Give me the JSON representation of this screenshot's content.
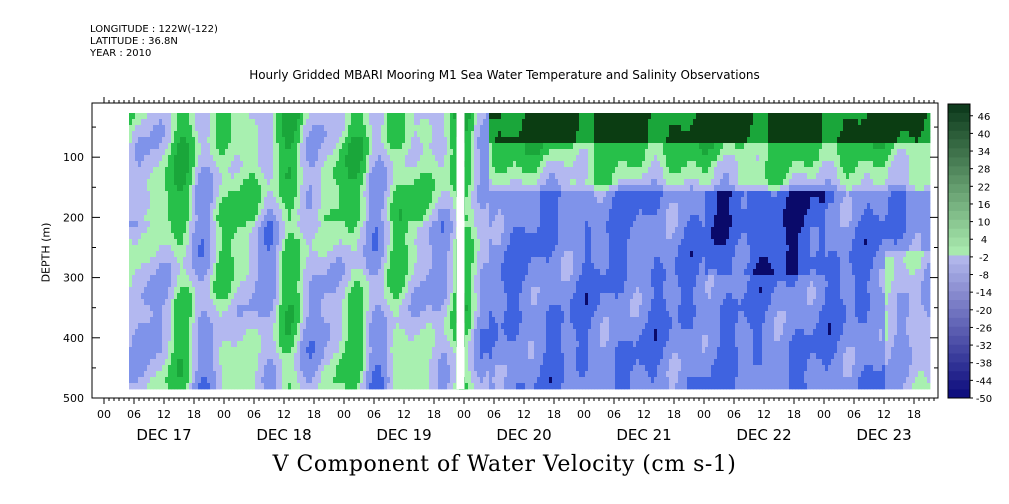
{
  "header": {
    "longitude": "LONGITUDE : 122W(-122)",
    "latitude": "LATITUDE : 36.8N",
    "year": "YEAR : 2010"
  },
  "chart_data": {
    "type": "heatmap",
    "title": "Hourly Gridded MBARI Mooring M1 Sea Water Temperature and Salinity Observations",
    "xlabel": "V Component of Water Velocity (cm s-1)",
    "ylabel": "DEPTH (m)",
    "ylim": [
      500,
      10
    ],
    "y_ticks": [
      100,
      200,
      300,
      400,
      500
    ],
    "x_hour_ticks": [
      "00",
      "06",
      "12",
      "18",
      "00",
      "06",
      "12",
      "18",
      "00",
      "06",
      "12",
      "18",
      "00",
      "06",
      "12",
      "18",
      "00",
      "06",
      "12",
      "18",
      "00",
      "06",
      "12",
      "18",
      "00",
      "06",
      "12",
      "18"
    ],
    "x_day_labels": [
      "DEC 17",
      "DEC 18",
      "DEC 19",
      "DEC 20",
      "DEC 21",
      "DEC 22",
      "DEC 23"
    ],
    "colorbar_labels": [
      "46",
      "40",
      "34",
      "28",
      "22",
      "16",
      "10",
      "4",
      "-2",
      "-8",
      "-14",
      "-20",
      "-26",
      "-32",
      "-38",
      "-44",
      "-50"
    ],
    "colorbar_range": [
      -50,
      50
    ],
    "colorbar_step": 3,
    "colors": {
      "positive_dark": "#0b3d12",
      "positive_mid": "#27c04a",
      "positive_light": "#a8f0b0",
      "negative_light": "#b3b8f0",
      "negative_mid": "#3f63e0",
      "negative_dark": "#0a0a6a"
    },
    "features": [
      {
        "note": "Strong positive (northward) flow near surface after DEC 20",
        "approx_value": 40
      },
      {
        "note": "Negative (southward) flow at depth DEC 20 - DEC 23",
        "approx_value": -25
      }
    ]
  }
}
